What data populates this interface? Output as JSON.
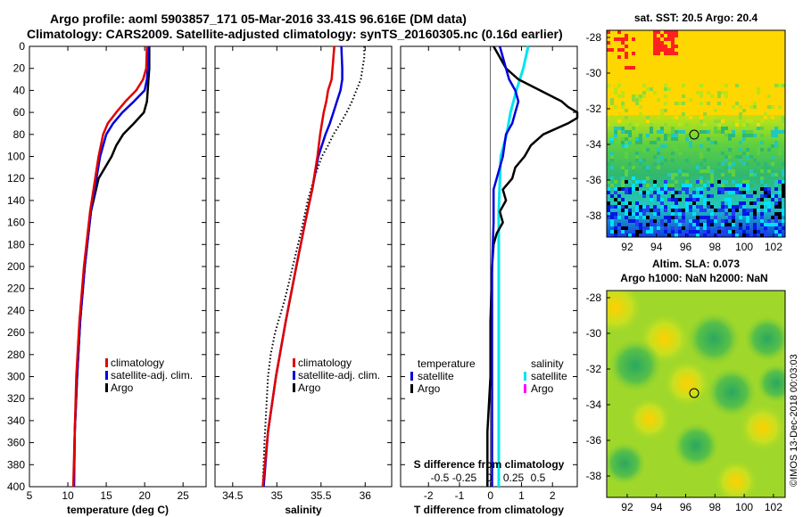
{
  "header": {
    "line1": "Argo profile: aoml 5903857_171 05-Mar-2016 33.41S 96.616E (DM data)",
    "line2": "Climatology: CARS2009. Satellite-adjusted climatology: synTS_20160305.nc (0.16d earlier)"
  },
  "right_titles": {
    "sst": "sat. SST: 20.5 Argo: 20.4",
    "sla1": "Altim. SLA: 0.073",
    "sla2": "Argo h1000: NaN h2000: NaN"
  },
  "credit": "©IMOS 13-Dec-2018 00:03:03",
  "colors": {
    "climatology": "#e00000",
    "satellite": "#0000dd",
    "argo": "#000000",
    "sal_satellite": "#00e5ee",
    "sal_argo": "#ff00ff"
  },
  "chart_data": [
    {
      "type": "line",
      "id": "temperature",
      "xlabel": "temperature (deg C)",
      "ylabel": "",
      "xlim": [
        5,
        28
      ],
      "ylim": [
        400,
        0
      ],
      "xticks": [
        "5",
        "10",
        "15",
        "20",
        "25"
      ],
      "yticks": [
        "0",
        "20",
        "40",
        "60",
        "80",
        "100",
        "120",
        "140",
        "160",
        "180",
        "200",
        "220",
        "240",
        "260",
        "280",
        "300",
        "320",
        "340",
        "360",
        "380",
        "400"
      ],
      "legend": [
        "climatology",
        "satellite-adj. clim.",
        "Argo"
      ],
      "series": [
        {
          "name": "climatology",
          "depth": [
            0,
            20,
            30,
            40,
            50,
            60,
            70,
            80,
            100,
            150,
            200,
            250,
            300,
            350,
            400
          ],
          "values": [
            20.3,
            20.2,
            19.8,
            18.9,
            17.5,
            16.3,
            15.2,
            14.6,
            14.0,
            12.9,
            12.1,
            11.5,
            11.1,
            10.9,
            10.7
          ]
        },
        {
          "name": "satellite-adj. clim.",
          "depth": [
            0,
            20,
            30,
            40,
            50,
            60,
            70,
            80,
            100,
            150,
            200,
            250,
            300,
            350,
            400
          ],
          "values": [
            20.5,
            20.4,
            20.3,
            20.0,
            18.6,
            17.1,
            15.9,
            15.0,
            14.2,
            13.0,
            12.2,
            11.6,
            11.2,
            10.9,
            10.8
          ]
        },
        {
          "name": "Argo",
          "depth": [
            0,
            20,
            30,
            40,
            50,
            60,
            70,
            80,
            90,
            100,
            120,
            150,
            200,
            250,
            300,
            350,
            400
          ],
          "values": [
            20.6,
            20.6,
            20.5,
            20.4,
            20.3,
            19.9,
            18.6,
            17.2,
            16.3,
            15.7,
            14.0,
            13.0,
            12.2,
            11.6,
            11.2,
            10.9,
            10.8
          ]
        }
      ]
    },
    {
      "type": "line",
      "id": "salinity",
      "xlabel": "salinity",
      "ylabel": "",
      "xlim": [
        34.3,
        36.3
      ],
      "ylim": [
        400,
        0
      ],
      "xticks": [
        "34.5",
        "35",
        "35.5",
        "36"
      ],
      "legend": [
        "climatology",
        "satellite-adj. clim.",
        "Argo"
      ],
      "series": [
        {
          "name": "climatology",
          "depth": [
            0,
            20,
            30,
            40,
            50,
            60,
            70,
            80,
            100,
            130,
            160,
            200,
            250,
            300,
            350,
            400
          ],
          "values": [
            35.65,
            35.63,
            35.62,
            35.58,
            35.56,
            35.53,
            35.51,
            35.49,
            35.46,
            35.4,
            35.32,
            35.22,
            35.1,
            34.99,
            34.9,
            34.84
          ]
        },
        {
          "name": "satellite-adj. clim.",
          "depth": [
            0,
            20,
            30,
            40,
            50,
            60,
            70,
            80,
            100,
            130,
            160,
            200,
            250,
            300,
            350,
            400
          ],
          "values": [
            35.73,
            35.74,
            35.74,
            35.72,
            35.68,
            35.64,
            35.6,
            35.55,
            35.47,
            35.4,
            35.32,
            35.22,
            35.1,
            34.99,
            34.9,
            34.85
          ]
        },
        {
          "name": "Argo",
          "depth": [
            0,
            10,
            20,
            30,
            40,
            50,
            60,
            70,
            80,
            90,
            100,
            120,
            140,
            170,
            200,
            230,
            260,
            280,
            300,
            330,
            360,
            400
          ],
          "values": [
            35.99,
            35.99,
            35.97,
            35.95,
            35.9,
            35.85,
            35.79,
            35.72,
            35.64,
            35.58,
            35.51,
            35.42,
            35.35,
            35.27,
            35.18,
            35.09,
            34.98,
            34.93,
            34.9,
            34.88,
            34.86,
            34.84
          ]
        }
      ]
    },
    {
      "type": "line",
      "id": "difference",
      "xlabel": "T difference from climatology",
      "top_label": "S difference from climatology",
      "xlim": [
        -2.9,
        2.8
      ],
      "ylim": [
        400,
        0
      ],
      "xticks": [
        "-2",
        "-1",
        "0",
        "1",
        "2"
      ],
      "s_ticks": [
        "-0.5",
        "-0.25",
        "0",
        "0.25",
        "0.5"
      ],
      "legend_left_title": "temperature",
      "legend_right_title": "salinity",
      "legend_left": [
        "satellite",
        "Argo"
      ],
      "legend_right": [
        "satellite",
        "Argo"
      ],
      "series": [
        {
          "name": "temperature satellite",
          "depth": [
            0,
            20,
            30,
            40,
            50,
            60,
            70,
            80,
            100,
            130,
            160,
            200,
            300,
            400
          ],
          "values": [
            0.3,
            0.5,
            0.6,
            0.8,
            0.9,
            0.8,
            0.7,
            0.5,
            0.4,
            0.1,
            0.1,
            0.05,
            0.05,
            0.05
          ]
        },
        {
          "name": "temperature Argo",
          "depth": [
            0,
            10,
            20,
            30,
            40,
            50,
            55,
            60,
            65,
            70,
            80,
            90,
            100,
            110,
            120,
            130,
            140,
            150,
            160,
            170,
            180,
            200,
            250,
            300,
            350,
            400
          ],
          "values": [
            0.1,
            0.3,
            0.5,
            0.9,
            1.6,
            2.3,
            2.5,
            2.8,
            2.8,
            2.5,
            1.7,
            1.3,
            1.1,
            0.8,
            0.7,
            0.4,
            0.5,
            0.3,
            0.4,
            0.2,
            0.1,
            0.05,
            0.0,
            0.0,
            -0.1,
            -0.1
          ]
        },
        {
          "name": "salinity satellite",
          "depth": [
            0,
            20,
            40,
            60,
            80,
            100,
            150,
            200,
            300,
            400
          ],
          "values": [
            0.4,
            0.35,
            0.28,
            0.22,
            0.18,
            0.12,
            0.1,
            0.1,
            0.1,
            0.1
          ]
        },
        {
          "name": "salinity Argo",
          "depth": [],
          "values": []
        }
      ]
    },
    {
      "type": "heatmap",
      "id": "sst_map",
      "title": "sat. SST: 20.5 Argo: 20.4",
      "xlim": [
        90.6,
        102.8
      ],
      "ylim": [
        -39.2,
        -27.6
      ],
      "xticks": [
        "92",
        "94",
        "96",
        "98",
        "100",
        "102"
      ],
      "yticks": [
        "-28",
        "-30",
        "-32",
        "-34",
        "-36",
        "-38"
      ],
      "argo_position": [
        96.616,
        -33.41
      ]
    },
    {
      "type": "heatmap",
      "id": "sla_map",
      "title": "Altim. SLA: 0.073",
      "xlim": [
        90.6,
        102.8
      ],
      "ylim": [
        -39.2,
        -27.6
      ],
      "xticks": [
        "92",
        "94",
        "96",
        "98",
        "100",
        "102"
      ],
      "yticks": [
        "-28",
        "-30",
        "-32",
        "-34",
        "-36",
        "-38"
      ],
      "argo_position": [
        96.616,
        -33.41
      ]
    }
  ]
}
